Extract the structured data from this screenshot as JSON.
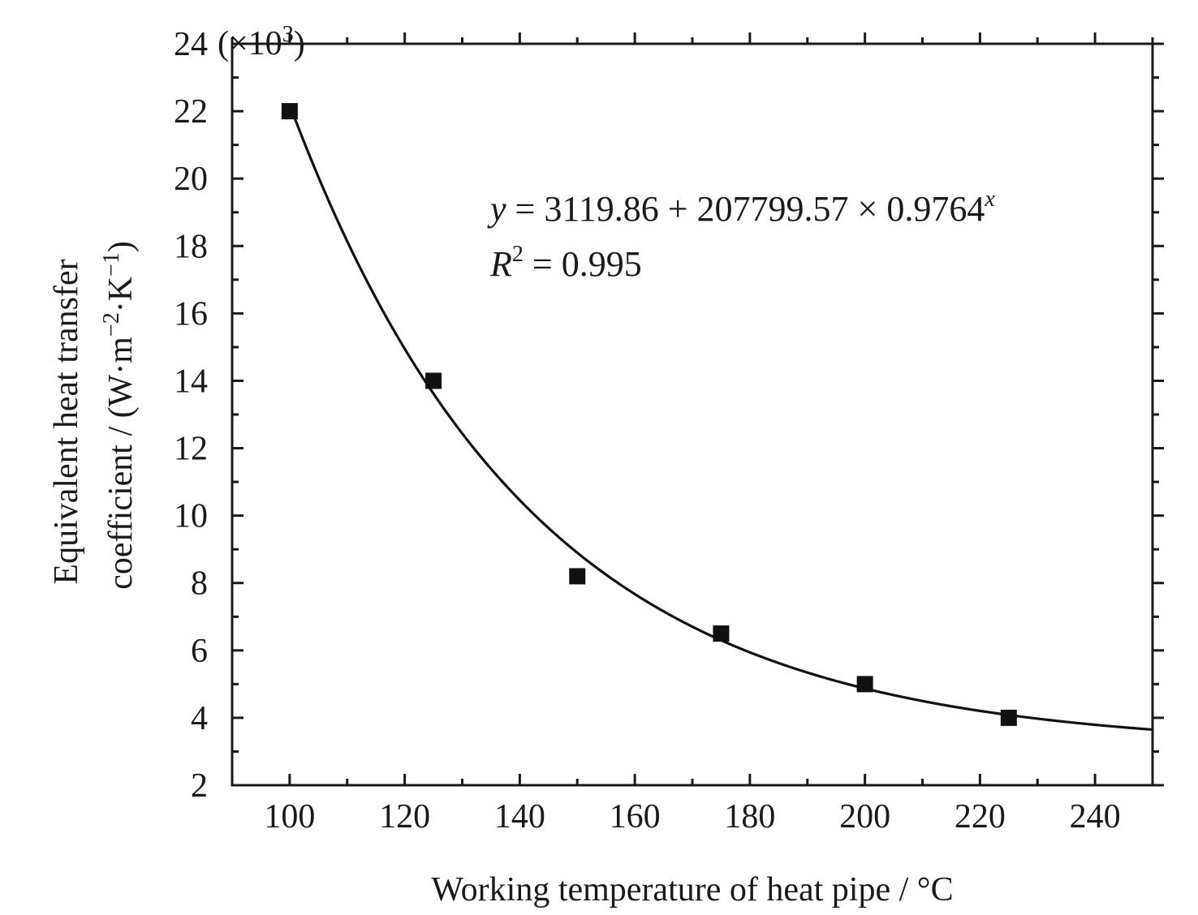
{
  "chart_data": {
    "type": "scatter",
    "title": "",
    "xlabel": "Working temperature of heat pipe / °C",
    "ylabel_line1": "Equivalent heat transfer",
    "ylabel_line2_prefix": "coefficient / (W·m",
    "ylabel_line2_exp1": "−2",
    "ylabel_line2_mid": "·K",
    "ylabel_line2_exp2": "−1",
    "ylabel_line2_suffix": ")",
    "y_multiplier_prefix": "(×10",
    "y_multiplier_exp": "3",
    "y_multiplier_suffix": ")",
    "xlim": [
      90,
      250
    ],
    "ylim": [
      2,
      24
    ],
    "x_ticks": [
      100,
      120,
      140,
      160,
      180,
      200,
      220,
      240
    ],
    "x_tick_labels": [
      "100",
      "120",
      "140",
      "160",
      "180",
      "200",
      "220",
      "240"
    ],
    "y_ticks": [
      2,
      4,
      6,
      8,
      10,
      12,
      14,
      16,
      18,
      20,
      22,
      24
    ],
    "y_tick_labels": [
      "2",
      "4",
      "6",
      "8",
      "10",
      "12",
      "14",
      "16",
      "18",
      "20",
      "22",
      "24"
    ],
    "grid": false,
    "series": [
      {
        "x": [
          100,
          125,
          150,
          175,
          200,
          225
        ],
        "y": [
          22.0,
          14.0,
          8.2,
          6.5,
          5.0,
          4.0
        ],
        "marker": "square",
        "color": "#111111"
      }
    ],
    "fit": {
      "type": "exponential",
      "a": 3119.86,
      "b": 207799.57,
      "c": 0.9764,
      "x_range": [
        100,
        250
      ],
      "color": "#111111"
    },
    "annotation": {
      "eq_y": "y",
      "eq_body": " = 3119.86 + 207799.57 × 0.9764",
      "eq_exp": "x",
      "r2_r": "R",
      "r2_exp": "2",
      "r2_body": " = 0.995"
    }
  }
}
